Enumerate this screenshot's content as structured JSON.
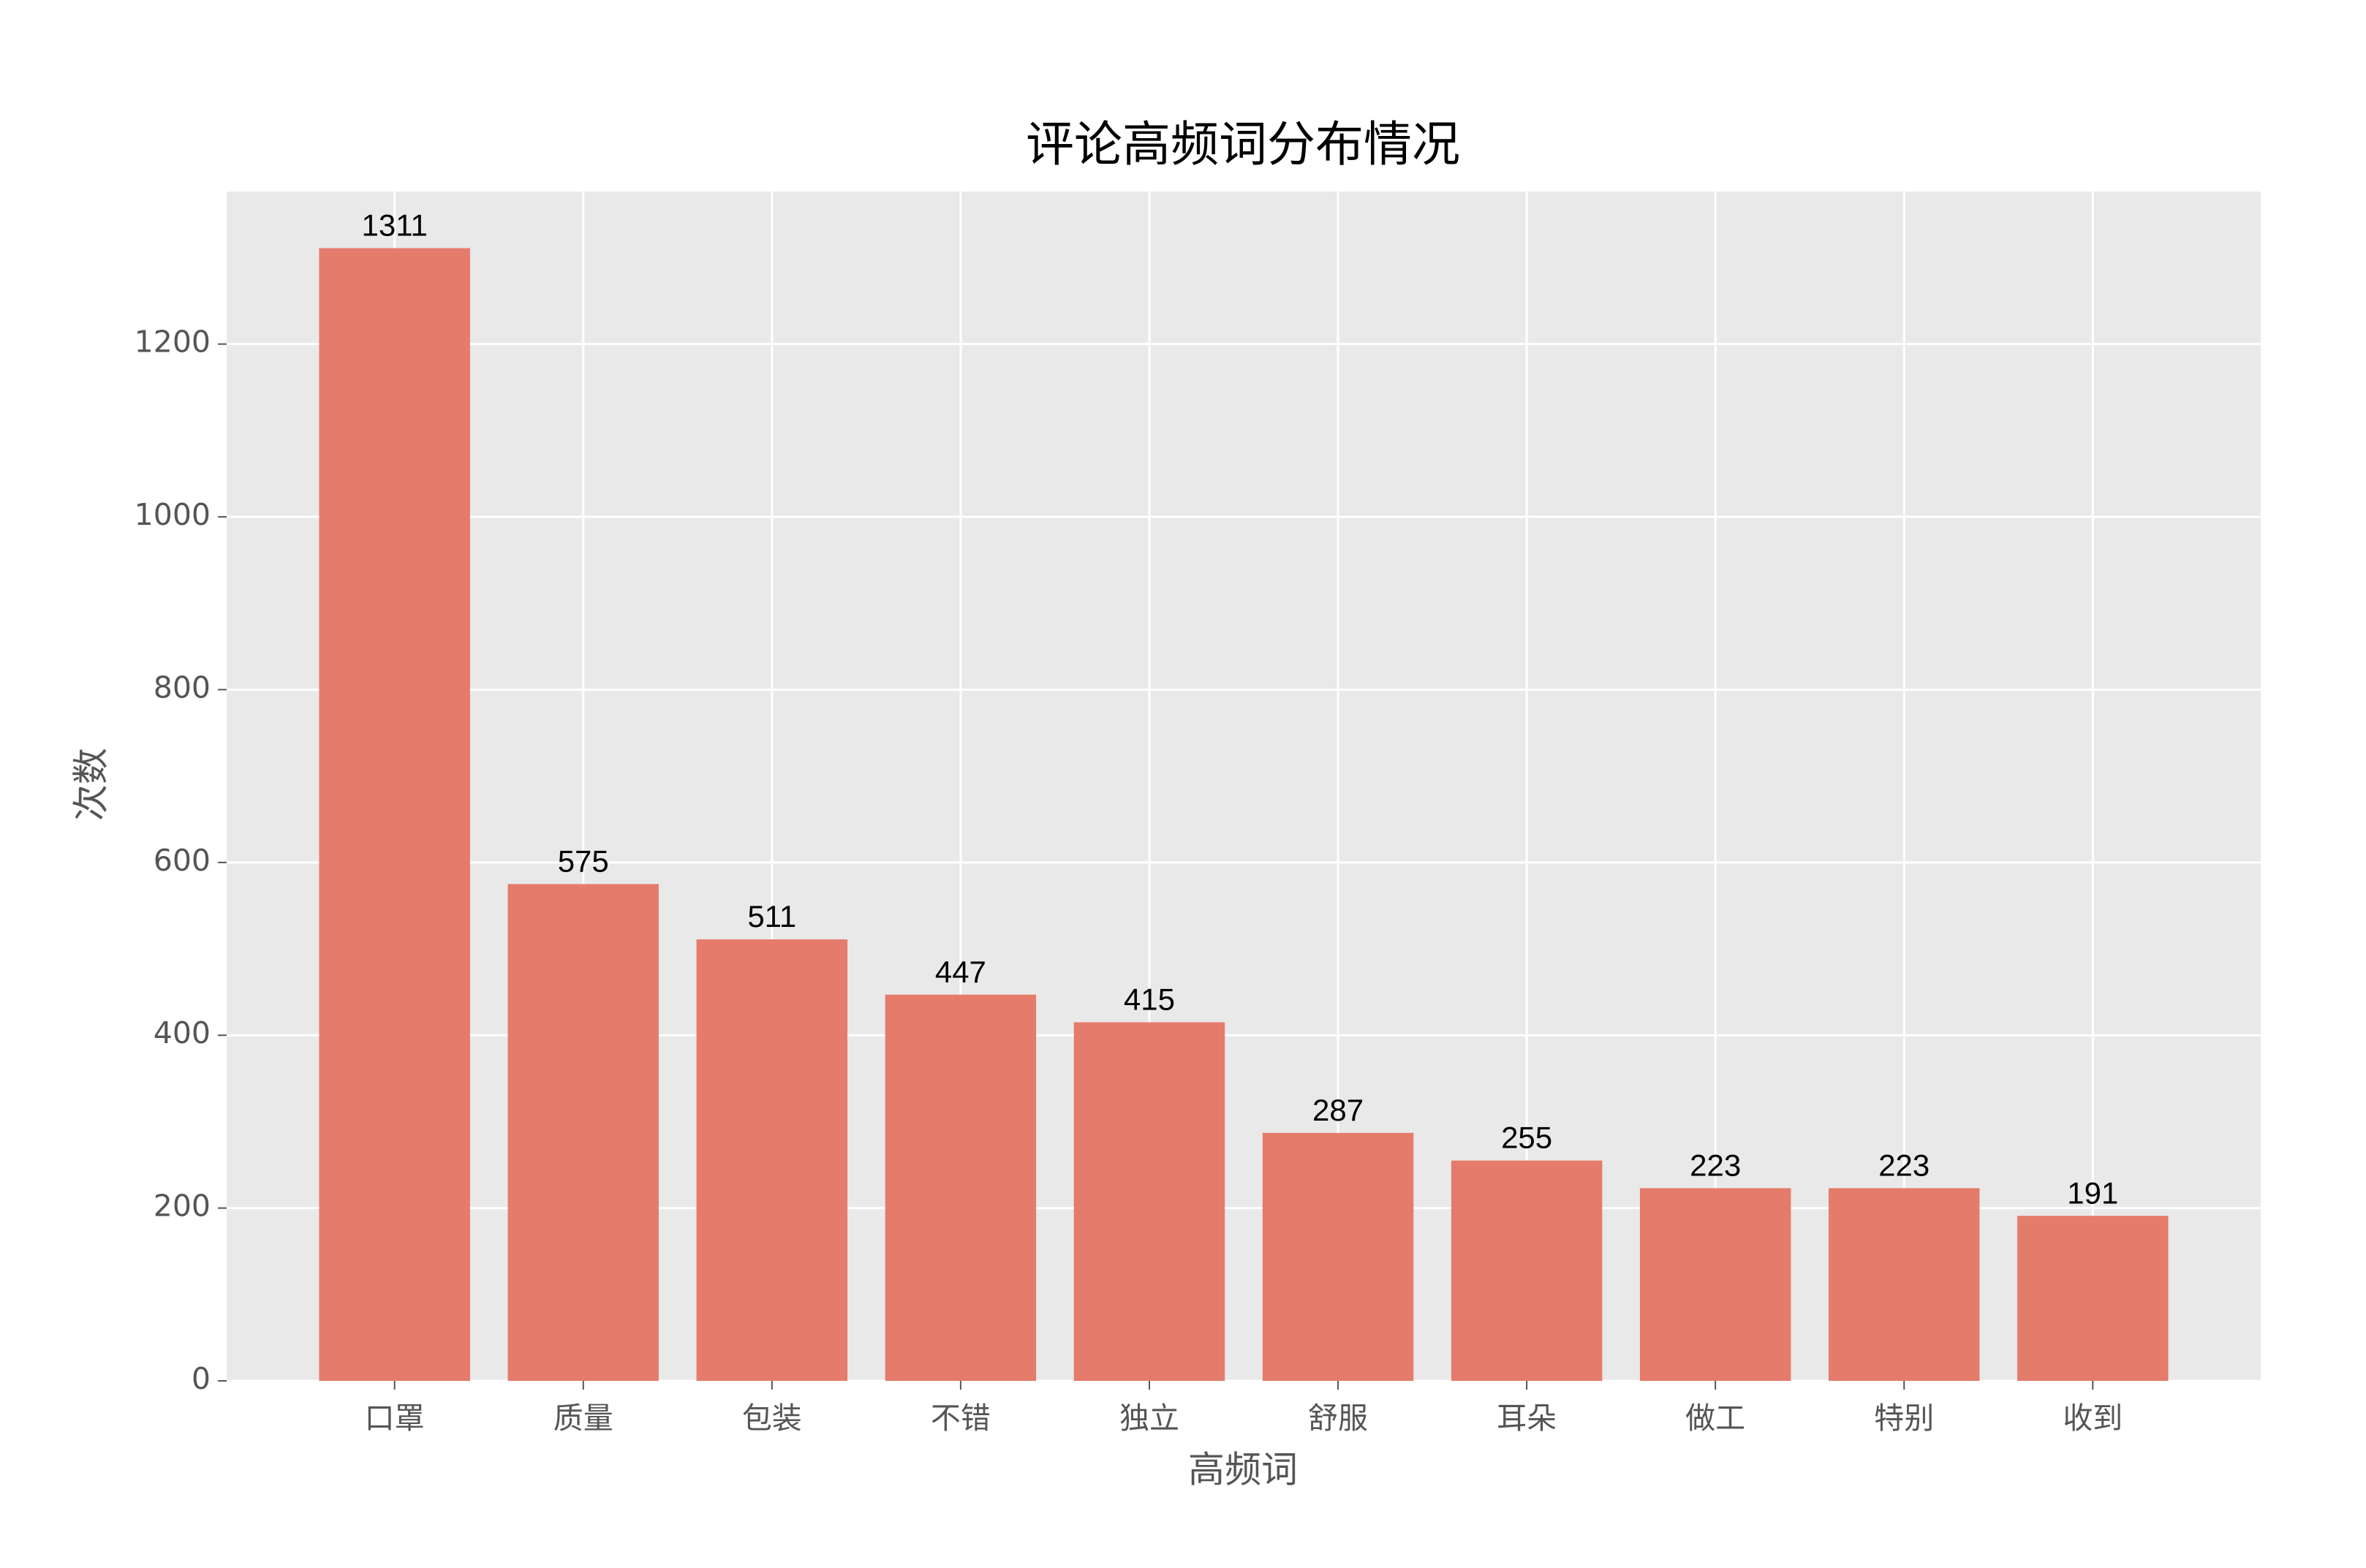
{
  "chart_data": {
    "type": "bar",
    "title": "评论高频词分布情况",
    "x_label": "高频词",
    "y_label": "次数",
    "categories": [
      "口罩",
      "质量",
      "包装",
      "不错",
      "独立",
      "舒服",
      "耳朵",
      "做工",
      "特别",
      "收到"
    ],
    "values": [
      1311,
      575,
      511,
      447,
      415,
      287,
      255,
      223,
      223,
      191
    ],
    "color": "#e57b6b",
    "ylim": [
      0,
      1376.55
    ],
    "yticks": [
      0,
      200,
      400,
      600,
      800,
      1000,
      1200
    ],
    "grid": true
  }
}
